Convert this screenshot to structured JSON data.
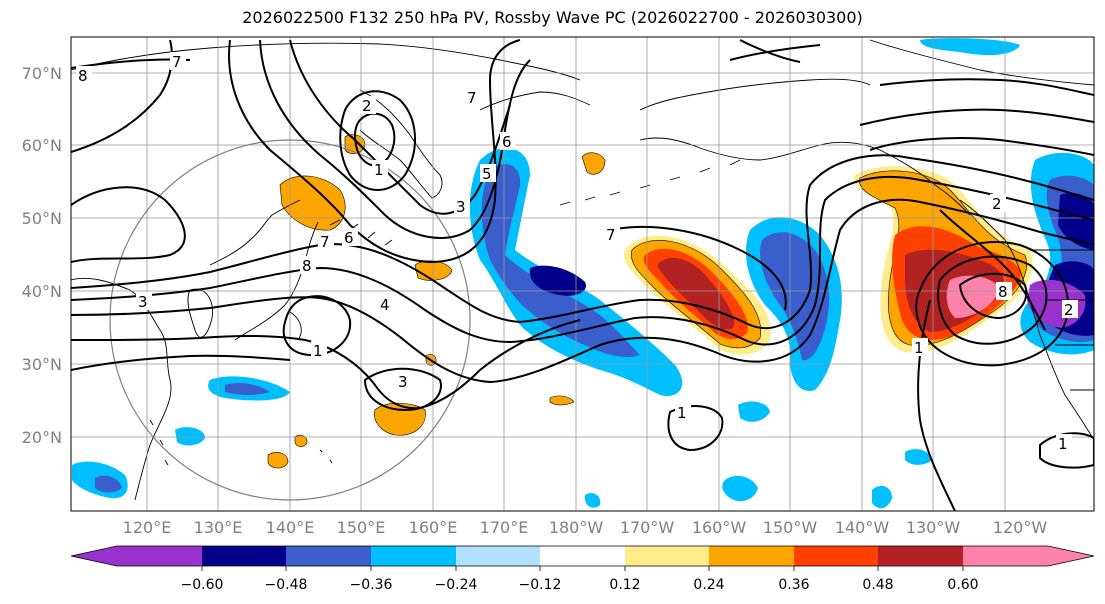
{
  "title": "2026022500 F132 250 hPa PV, Rossby Wave PC (2026022700 - 2026030300)",
  "latitude_labels": [
    "70°N",
    "60°N",
    "50°N",
    "40°N",
    "30°N",
    "20°N"
  ],
  "longitude_labels": [
    "120°E",
    "130°E",
    "140°E",
    "150°E",
    "160°E",
    "170°E",
    "180°W",
    "170°W",
    "160°W",
    "150°W",
    "140°W",
    "130°W",
    "120°W"
  ],
  "colorbar": {
    "tick_labels": [
      "−0.60",
      "−0.48",
      "−0.36",
      "−0.24",
      "−0.12",
      "0.12",
      "0.24",
      "0.36",
      "0.48",
      "0.60"
    ],
    "colors": [
      "#9932cc",
      "#00008b",
      "#3a5fcd",
      "#00bfff",
      "#b0e2ff",
      "#ffffff",
      "#ffec8b",
      "#ffa500",
      "#ff4000",
      "#b22222",
      "#ff82ab"
    ]
  },
  "contour_labels": [
    "8",
    "7",
    "7",
    "2",
    "1",
    "6",
    "7",
    "8",
    "5",
    "3",
    "6",
    "4",
    "3",
    "1",
    "3",
    "7",
    "1",
    "2",
    "2",
    "8",
    "1",
    "1"
  ]
}
